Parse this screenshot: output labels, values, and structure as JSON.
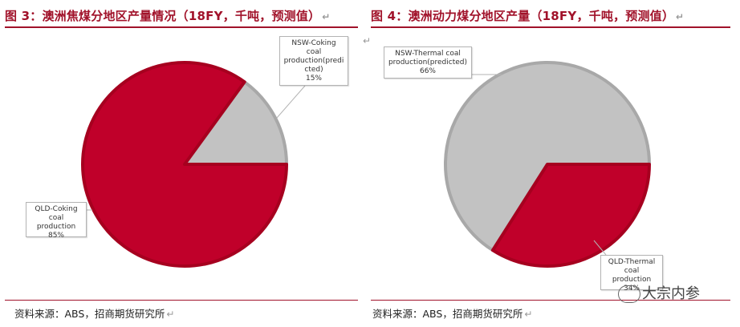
{
  "left": {
    "title": "图 3：澳洲焦煤分地区产量情况（18FY，千吨，预测值）",
    "source": "资料来源：ABS，招商期货研究所",
    "callouts": {
      "nsw": [
        "NSW-Coking",
        "coal",
        "production(predi",
        "cted)",
        "15%"
      ],
      "qld": [
        "QLD-Coking",
        "coal production",
        "85%"
      ]
    }
  },
  "right": {
    "title": "图 4：澳洲动力煤分地区产量（18FY，千吨，预测值）",
    "source": "资料来源：ABS，招商期货研究所",
    "callouts": {
      "nsw": [
        "NSW-Thermal coal",
        "production(predicted)",
        "66%"
      ],
      "qld": [
        "QLD-Thermal",
        "coal production",
        "34%"
      ]
    }
  },
  "watermark": "大宗内参",
  "colors": {
    "accent": "#a1122a",
    "qld": "#c0002a",
    "nsw": "#c2c2c2"
  },
  "chart_data": [
    {
      "type": "pie",
      "title": "图 3：澳洲焦煤分地区产量情况（18FY，千吨，预测值）",
      "slices": [
        {
          "name": "NSW-Coking coal production(predicted)",
          "value": 15
        },
        {
          "name": "QLD-Coking coal production",
          "value": 85
        }
      ]
    },
    {
      "type": "pie",
      "title": "图 4：澳洲动力煤分地区产量（18FY，千吨，预测值）",
      "slices": [
        {
          "name": "NSW-Thermal coal production(predicted)",
          "value": 66
        },
        {
          "name": "QLD-Thermal coal production",
          "value": 34
        }
      ]
    }
  ]
}
